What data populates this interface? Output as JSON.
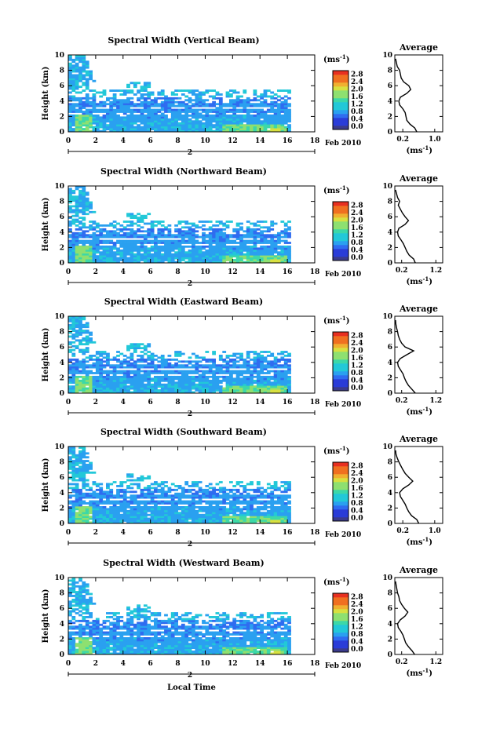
{
  "chart_data": [
    {
      "type": "heatmap",
      "title": "Spectral Width (Vertical Beam)",
      "ylabel": "Height (km)",
      "x_ticks": [
        "0",
        "2",
        "4",
        "6",
        "8",
        "10",
        "12",
        "14",
        "16",
        "18"
      ],
      "y_ticks": [
        "0",
        "2",
        "4",
        "6",
        "8",
        "10"
      ],
      "xlim": [
        0,
        18
      ],
      "ylim": [
        0,
        10
      ],
      "date_marker": "2",
      "date_label": "Feb 2010",
      "colorbar": {
        "unit": "(ms",
        "unit_exp": "-1",
        "unit_close": ")",
        "ticks": [
          "0.0",
          "0.4",
          "0.8",
          "1.2",
          "1.6",
          "2.0",
          "2.4",
          "2.8"
        ],
        "range": [
          0,
          3.0
        ]
      },
      "profile": {
        "title": "Average",
        "x_ticks": [
          "0.2",
          "1.0"
        ],
        "xlabel": "(ms",
        "xlabel_exp": "-1",
        "xlabel_close": ")",
        "xlim": [
          0,
          1.2
        ],
        "y_ticks": [
          "0",
          "2",
          "4",
          "6",
          "8",
          "10"
        ],
        "ylim": [
          0,
          10
        ],
        "points": [
          [
            0.55,
            0
          ],
          [
            0.5,
            0.5
          ],
          [
            0.38,
            1
          ],
          [
            0.3,
            1.5
          ],
          [
            0.28,
            2
          ],
          [
            0.26,
            2.5
          ],
          [
            0.2,
            3
          ],
          [
            0.12,
            3.5
          ],
          [
            0.1,
            4
          ],
          [
            0.14,
            4.5
          ],
          [
            0.3,
            5
          ],
          [
            0.4,
            5.5
          ],
          [
            0.35,
            6
          ],
          [
            0.22,
            6.5
          ],
          [
            0.16,
            7
          ],
          [
            0.14,
            7.5
          ],
          [
            0.12,
            8
          ],
          [
            0.06,
            8.5
          ],
          [
            0.04,
            9
          ],
          [
            0.02,
            9.5
          ]
        ]
      }
    },
    {
      "type": "heatmap",
      "title": "Spectral Width (Northward Beam)",
      "ylabel": "Height (km)",
      "x_ticks": [
        "0",
        "2",
        "4",
        "6",
        "8",
        "10",
        "12",
        "14",
        "16",
        "18"
      ],
      "y_ticks": [
        "0",
        "2",
        "4",
        "6",
        "8",
        "10"
      ],
      "xlim": [
        0,
        18
      ],
      "ylim": [
        0,
        10
      ],
      "date_marker": "2",
      "date_label": "Feb 2010",
      "colorbar": {
        "unit": "(ms",
        "unit_exp": "-1",
        "unit_close": ")",
        "ticks": [
          "0.0",
          "0.4",
          "0.8",
          "1.2",
          "1.6",
          "2.0",
          "2.4",
          "2.8"
        ],
        "range": [
          0,
          3.0
        ]
      },
      "profile": {
        "title": "Average",
        "x_ticks": [
          "0.2",
          "1.2"
        ],
        "xlabel": "(ms",
        "xlabel_exp": "-1",
        "xlabel_close": ")",
        "xlim": [
          0,
          1.4
        ],
        "y_ticks": [
          "0",
          "2",
          "4",
          "6",
          "8",
          "10"
        ],
        "ylim": [
          0,
          10
        ],
        "points": [
          [
            0.6,
            0
          ],
          [
            0.55,
            0.5
          ],
          [
            0.42,
            1
          ],
          [
            0.35,
            1.5
          ],
          [
            0.3,
            2
          ],
          [
            0.25,
            2.5
          ],
          [
            0.18,
            3
          ],
          [
            0.1,
            3.5
          ],
          [
            0.08,
            4
          ],
          [
            0.12,
            4.5
          ],
          [
            0.3,
            5
          ],
          [
            0.4,
            5.5
          ],
          [
            0.3,
            6
          ],
          [
            0.22,
            6.5
          ],
          [
            0.16,
            7
          ],
          [
            0.1,
            7.5
          ],
          [
            0.14,
            8
          ],
          [
            0.08,
            8.5
          ],
          [
            0.05,
            9
          ],
          [
            0.02,
            9.5
          ]
        ]
      }
    },
    {
      "type": "heatmap",
      "title": "Spectral Width (Eastward Beam)",
      "ylabel": "Height (km)",
      "x_ticks": [
        "0",
        "2",
        "4",
        "6",
        "8",
        "10",
        "12",
        "14",
        "16",
        "18"
      ],
      "y_ticks": [
        "0",
        "2",
        "4",
        "6",
        "8",
        "10"
      ],
      "xlim": [
        0,
        18
      ],
      "ylim": [
        0,
        10
      ],
      "date_marker": "2",
      "date_label": "Feb 2010",
      "colorbar": {
        "unit": "(ms",
        "unit_exp": "-1",
        "unit_close": ")",
        "ticks": [
          "0.0",
          "0.4",
          "0.8",
          "1.2",
          "1.6",
          "2.0",
          "2.4",
          "2.8"
        ],
        "range": [
          0,
          3.0
        ]
      },
      "profile": {
        "title": "Average",
        "x_ticks": [
          "0.2",
          "1.2"
        ],
        "xlabel": "(ms",
        "xlabel_exp": "-1",
        "xlabel_close": ")",
        "xlim": [
          0,
          1.4
        ],
        "y_ticks": [
          "0",
          "2",
          "4",
          "6",
          "8",
          "10"
        ],
        "ylim": [
          0,
          10
        ],
        "points": [
          [
            0.6,
            0
          ],
          [
            0.5,
            0.5
          ],
          [
            0.4,
            1
          ],
          [
            0.33,
            1.5
          ],
          [
            0.28,
            2
          ],
          [
            0.24,
            2.5
          ],
          [
            0.17,
            3
          ],
          [
            0.1,
            3.5
          ],
          [
            0.08,
            4
          ],
          [
            0.16,
            4.5
          ],
          [
            0.35,
            5
          ],
          [
            0.55,
            5.5
          ],
          [
            0.3,
            6
          ],
          [
            0.2,
            6.5
          ],
          [
            0.14,
            7
          ],
          [
            0.1,
            7.5
          ],
          [
            0.08,
            8
          ],
          [
            0.05,
            8.5
          ],
          [
            0.03,
            9
          ],
          [
            0.02,
            9.5
          ]
        ]
      }
    },
    {
      "type": "heatmap",
      "title": "Spectral Width (Southward Beam)",
      "ylabel": "Height (km)",
      "x_ticks": [
        "0",
        "2",
        "4",
        "6",
        "8",
        "10",
        "12",
        "14",
        "16",
        "18"
      ],
      "y_ticks": [
        "0",
        "2",
        "4",
        "6",
        "8",
        "10"
      ],
      "xlim": [
        0,
        18
      ],
      "ylim": [
        0,
        10
      ],
      "date_marker": "2",
      "date_label": "Feb 2010",
      "colorbar": {
        "unit": "(ms",
        "unit_exp": "-1",
        "unit_close": ")",
        "ticks": [
          "0.0",
          "0.4",
          "0.8",
          "1.2",
          "1.6",
          "2.0",
          "2.4",
          "2.8"
        ],
        "range": [
          0,
          3.0
        ]
      },
      "profile": {
        "title": "Average",
        "x_ticks": [
          "0.2",
          "1.0"
        ],
        "xlabel": "(ms",
        "xlabel_exp": "-1",
        "xlabel_close": ")",
        "xlim": [
          0,
          1.2
        ],
        "y_ticks": [
          "0",
          "2",
          "4",
          "6",
          "8",
          "10"
        ],
        "ylim": [
          0,
          10
        ],
        "points": [
          [
            0.6,
            0
          ],
          [
            0.55,
            0.5
          ],
          [
            0.42,
            1
          ],
          [
            0.35,
            1.5
          ],
          [
            0.3,
            2
          ],
          [
            0.26,
            2.5
          ],
          [
            0.2,
            3
          ],
          [
            0.14,
            3.5
          ],
          [
            0.12,
            4
          ],
          [
            0.2,
            4.5
          ],
          [
            0.35,
            5
          ],
          [
            0.45,
            5.5
          ],
          [
            0.35,
            6
          ],
          [
            0.26,
            6.5
          ],
          [
            0.2,
            7
          ],
          [
            0.15,
            7.5
          ],
          [
            0.1,
            8
          ],
          [
            0.06,
            8.5
          ],
          [
            0.03,
            9
          ],
          [
            0.02,
            9.5
          ]
        ]
      }
    },
    {
      "type": "heatmap",
      "title": "Spectral Width (Westward Beam)",
      "ylabel": "Height (km)",
      "xlabel": "Local Time",
      "x_ticks": [
        "0",
        "2",
        "4",
        "6",
        "8",
        "10",
        "12",
        "14",
        "16",
        "18"
      ],
      "y_ticks": [
        "0",
        "2",
        "4",
        "6",
        "8",
        "10"
      ],
      "xlim": [
        0,
        18
      ],
      "ylim": [
        0,
        10
      ],
      "date_marker": "2",
      "date_label": "Feb 2010",
      "colorbar": {
        "unit": "(ms",
        "unit_exp": "-1",
        "unit_close": ")",
        "ticks": [
          "0.0",
          "0.4",
          "0.8",
          "1.2",
          "1.6",
          "2.0",
          "2.4",
          "2.8"
        ],
        "range": [
          0,
          3.0
        ]
      },
      "profile": {
        "title": "Average",
        "x_ticks": [
          "0.2",
          "1.2"
        ],
        "xlabel": "(ms",
        "xlabel_exp": "-1",
        "xlabel_close": ")",
        "xlim": [
          0,
          1.4
        ],
        "y_ticks": [
          "0",
          "2",
          "4",
          "6",
          "8",
          "10"
        ],
        "ylim": [
          0,
          10
        ],
        "points": [
          [
            0.58,
            0
          ],
          [
            0.5,
            0.5
          ],
          [
            0.4,
            1
          ],
          [
            0.32,
            1.5
          ],
          [
            0.28,
            2
          ],
          [
            0.24,
            2.5
          ],
          [
            0.18,
            3
          ],
          [
            0.1,
            3.5
          ],
          [
            0.08,
            4
          ],
          [
            0.16,
            4.5
          ],
          [
            0.3,
            5
          ],
          [
            0.38,
            5.5
          ],
          [
            0.28,
            6
          ],
          [
            0.2,
            6.5
          ],
          [
            0.14,
            7
          ],
          [
            0.12,
            7.5
          ],
          [
            0.08,
            8
          ],
          [
            0.06,
            8.5
          ],
          [
            0.04,
            9
          ],
          [
            0.02,
            9.5
          ]
        ]
      }
    }
  ]
}
